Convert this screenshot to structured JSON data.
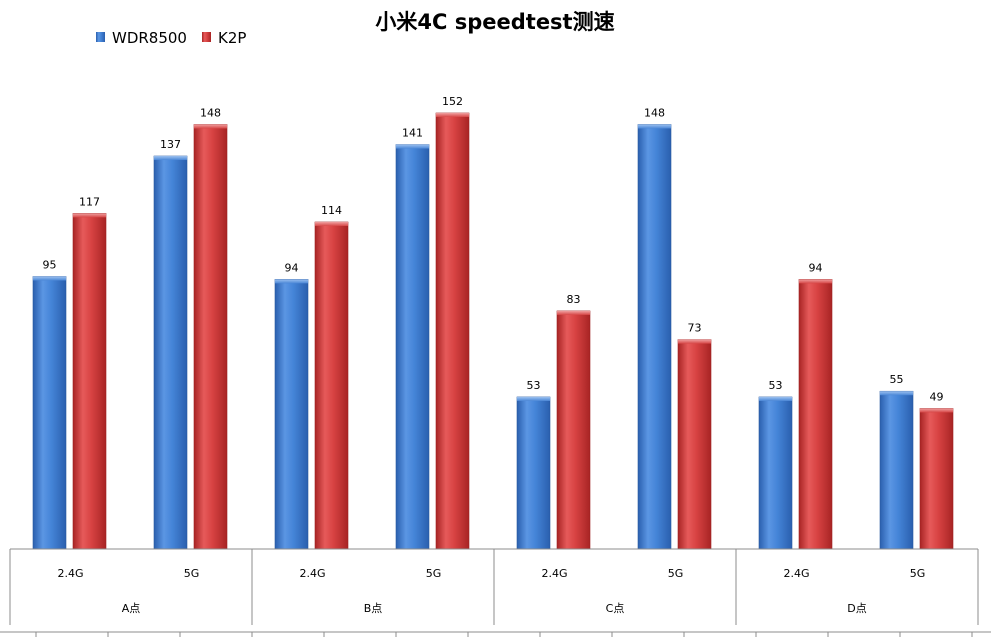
{
  "chart_data": {
    "type": "bar",
    "title": "小米4C speedtest测速",
    "group_categories": [
      "A点",
      "B点",
      "C点",
      "D点"
    ],
    "categories": [
      "2.4G",
      "5G",
      "2.4G",
      "5G",
      "2.4G",
      "5G",
      "2.4G",
      "5G"
    ],
    "series": [
      {
        "name": "WDR8500",
        "values": [
          95,
          137,
          94,
          141,
          53,
          148,
          53,
          55
        ]
      },
      {
        "name": "K2P",
        "values": [
          117,
          148,
          114,
          152,
          83,
          73,
          94,
          49
        ]
      }
    ],
    "ylim": [
      0,
      152
    ],
    "grid": false,
    "legend_position": "top-left",
    "data_labels": true
  },
  "colors": {
    "WDR8500": "#3A7BD5",
    "K2P": "#D63A3A"
  }
}
